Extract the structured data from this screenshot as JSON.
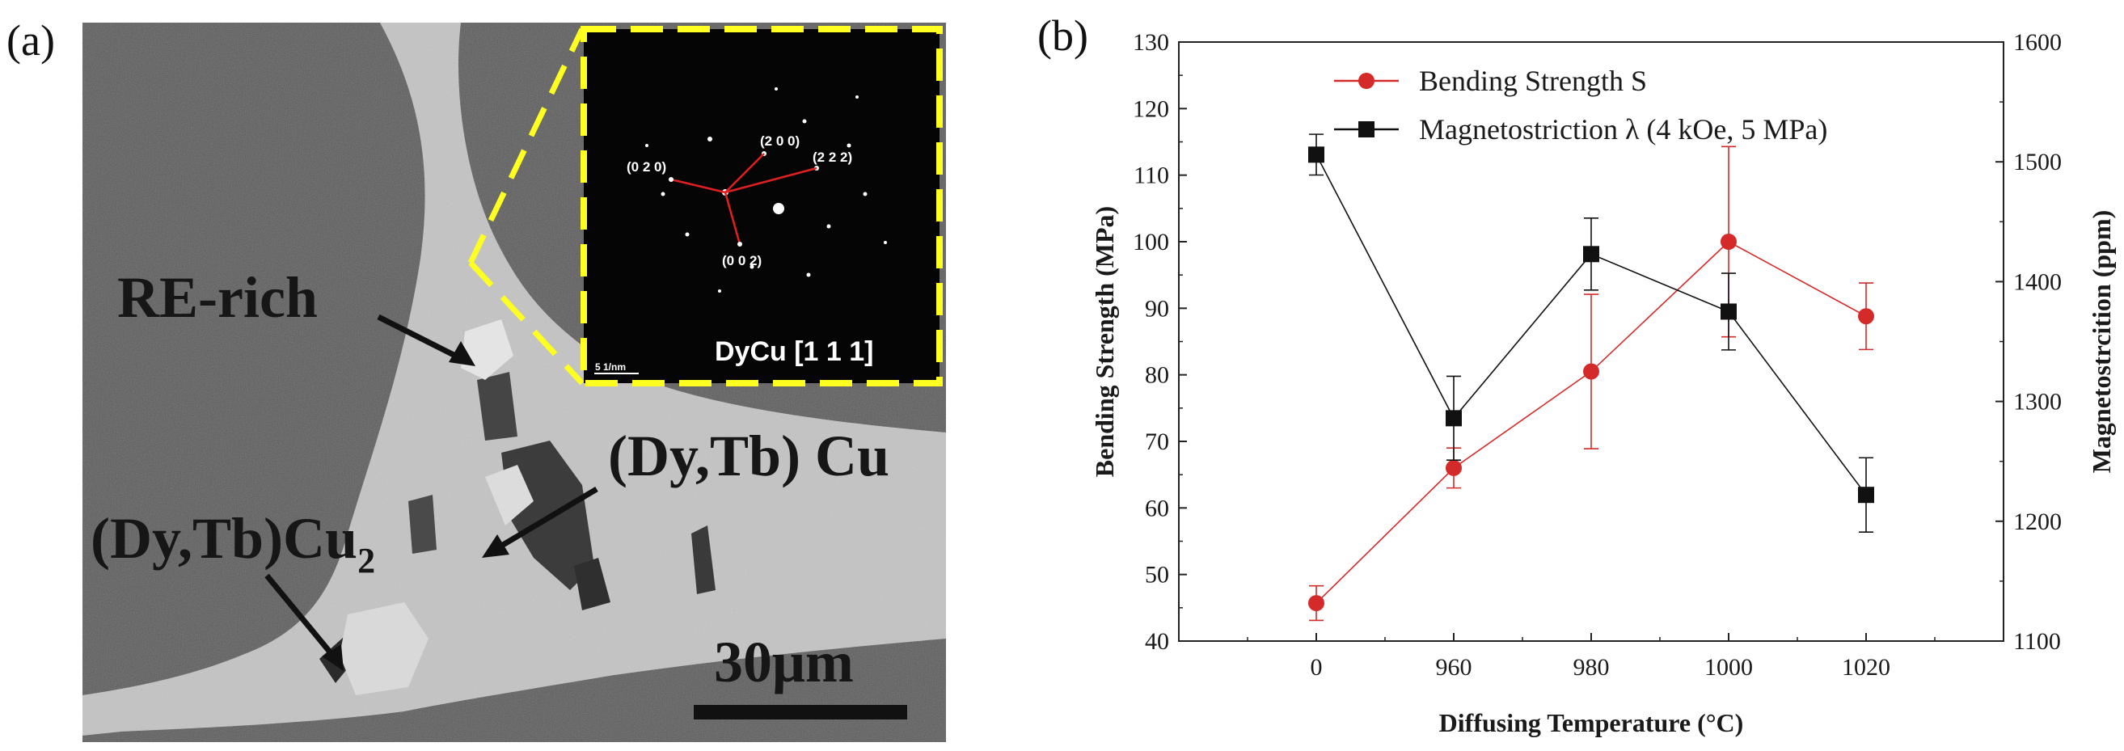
{
  "panel_a": {
    "label": "(a)",
    "annotations": {
      "re_rich": "RE-rich",
      "dytb_cu": "(Dy,Tb) Cu",
      "dytb_cu2_main": "(Dy,Tb)Cu",
      "dytb_cu2_sub": "2",
      "scale_bar": "30μm"
    },
    "inset": {
      "zone_axis": "DyCu [1 1 1]",
      "scale": "5 1/nm",
      "spots": [
        "(2 0 0)",
        "(0 2 0)",
        "(2 2 2)",
        "(0 0 2)"
      ]
    }
  },
  "panel_b": {
    "label": "(b)"
  },
  "colors": {
    "bending": "#d42a2a",
    "magnetostriction": "#111111",
    "inset_border": "#ffff22"
  },
  "chart_data": {
    "type": "line",
    "xlabel": "Diffusing Temperature (°C)",
    "ylabel": "Bending Strength (MPa)",
    "y2label": "Magnetostrcition (ppm)",
    "categories": [
      "0",
      "960",
      "980",
      "1000",
      "1020"
    ],
    "ylim": [
      40,
      130
    ],
    "y2lim": [
      1100,
      1600
    ],
    "yticks": [
      40,
      50,
      60,
      70,
      80,
      90,
      100,
      110,
      120,
      130
    ],
    "y2ticks": [
      1100,
      1200,
      1300,
      1400,
      1500,
      1600
    ],
    "legend_position": "top-center",
    "series": [
      {
        "name": "Bending Strength S",
        "axis": "left",
        "marker": "circle",
        "color": "#d42a2a",
        "values": [
          45.7,
          66.0,
          80.5,
          100.0,
          88.8
        ],
        "err": [
          2.6,
          3.0,
          11.6,
          14.3,
          5.0
        ]
      },
      {
        "name": "Magnetostriction λ (4 kOe, 5 MPa)",
        "axis": "right",
        "marker": "square",
        "color": "#111111",
        "values": [
          1506,
          1286,
          1423,
          1375,
          1222
        ],
        "err": [
          17,
          35,
          30,
          32,
          31
        ]
      }
    ]
  }
}
